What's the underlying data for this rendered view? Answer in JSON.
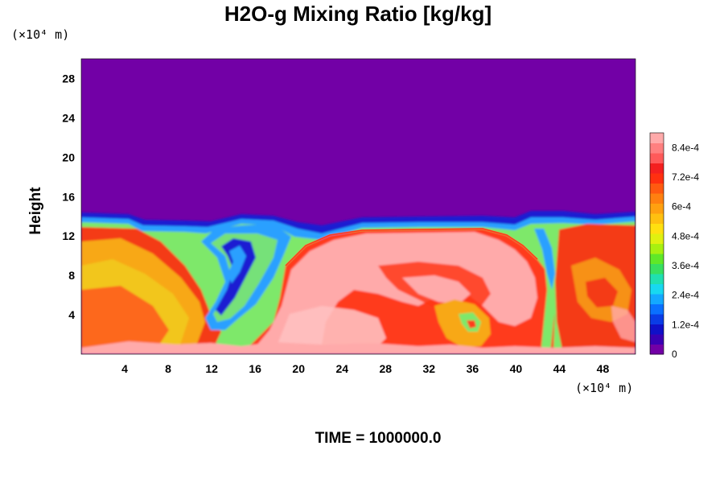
{
  "chart_data": {
    "type": "heatmap",
    "title": "H2O-g Mixing Ratio [kg/kg]",
    "ylabel": "Height",
    "x_unit": "(×10⁴ m)",
    "y_unit": "(×10⁴ m)",
    "xlim": [
      0,
      51
    ],
    "ylim": [
      0,
      30
    ],
    "x_ticks": [
      4,
      8,
      12,
      16,
      20,
      24,
      28,
      32,
      36,
      40,
      44,
      48
    ],
    "y_ticks": [
      4,
      8,
      12,
      16,
      20,
      24,
      28
    ],
    "colorbar": {
      "vmin": 0,
      "vmax": 0.0009,
      "levels": 22,
      "ticks": [
        "0",
        "1.2e-4",
        "2.4e-4",
        "3.6e-4",
        "4.8e-4",
        "6e-4",
        "7.2e-4",
        "8.4e-4"
      ]
    },
    "annotation": "TIME = 1000000.0",
    "features": {
      "dry_layer_above_km": 14,
      "moist_layer_top": 13.5,
      "dry_intrusion_x": [
        12,
        18
      ],
      "saturated_core_x": [
        19,
        42
      ]
    }
  }
}
